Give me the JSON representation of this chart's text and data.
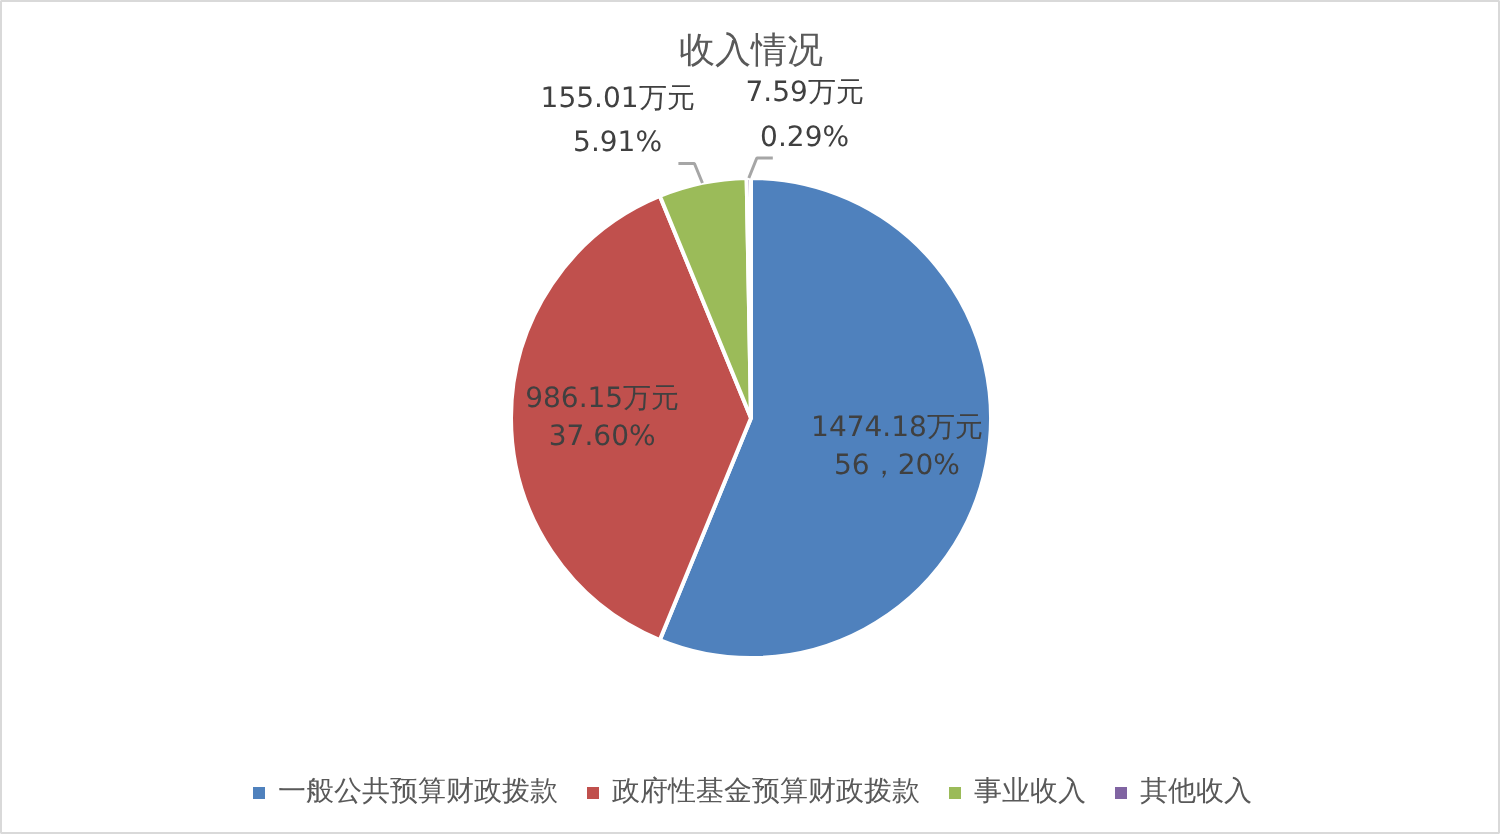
{
  "chart_data": {
    "type": "pie",
    "title": "收入情况",
    "categories": [
      "一般公共预算财政拨款",
      "政府性基金预算财政拨款",
      "事业收入",
      "其他收入"
    ],
    "values": [
      1474.18,
      986.15,
      155.01,
      7.59
    ],
    "colors": [
      "#4f81bd",
      "#c0504d",
      "#9bbb59",
      "#8064a2"
    ],
    "value_labels": [
      "1474.18万元\n56，20%",
      "986.15万元\n37.60%",
      "155.01万元\n5.91%",
      "7.59万元\n0.29%"
    ],
    "legend": "bottom"
  }
}
